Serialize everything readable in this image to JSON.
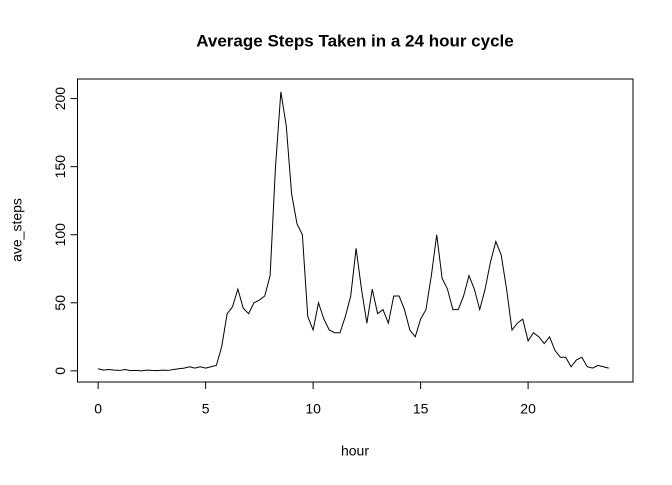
{
  "chart_data": {
    "type": "line",
    "title": "Average Steps Taken in a 24 hour cycle",
    "xlabel": "hour",
    "ylabel": "ave_steps",
    "x": [
      0,
      0.25,
      0.5,
      0.75,
      1,
      1.25,
      1.5,
      1.75,
      2,
      2.25,
      2.5,
      2.75,
      3,
      3.25,
      3.5,
      3.75,
      4,
      4.25,
      4.5,
      4.75,
      5,
      5.25,
      5.5,
      5.75,
      6,
      6.25,
      6.5,
      6.75,
      7,
      7.25,
      7.5,
      7.75,
      8,
      8.25,
      8.5,
      8.75,
      9,
      9.25,
      9.5,
      9.75,
      10,
      10.25,
      10.5,
      10.75,
      11,
      11.25,
      11.5,
      11.75,
      12,
      12.25,
      12.5,
      12.75,
      13,
      13.25,
      13.5,
      13.75,
      14,
      14.25,
      14.5,
      14.75,
      15,
      15.25,
      15.5,
      15.75,
      16,
      16.25,
      16.5,
      16.75,
      17,
      17.25,
      17.5,
      17.75,
      18,
      18.25,
      18.5,
      18.75,
      19,
      19.25,
      19.5,
      19.75,
      20,
      20.25,
      20.5,
      20.75,
      21,
      21.25,
      21.5,
      21.75,
      22,
      22.25,
      22.5,
      22.75,
      23,
      23.25,
      23.5,
      23.75
    ],
    "series": [
      {
        "name": "ave_steps",
        "color": "#000000",
        "values": [
          1.5,
          0.5,
          1,
          0.5,
          0.3,
          1,
          0.2,
          0.3,
          0,
          0.5,
          0.3,
          0.2,
          0.5,
          0.3,
          1,
          1.5,
          2,
          3,
          2,
          3,
          2,
          3,
          4,
          18,
          42,
          47,
          60,
          46,
          42,
          50,
          52,
          55,
          70,
          150,
          205,
          180,
          130,
          108,
          100,
          40,
          30,
          50,
          38,
          30,
          28,
          28,
          40,
          55,
          90,
          60,
          35,
          60,
          42,
          45,
          35,
          55,
          55,
          45,
          30,
          25,
          38,
          45,
          70,
          100,
          68,
          60,
          45,
          45,
          55,
          70,
          60,
          45,
          60,
          80,
          95,
          85,
          60,
          30,
          35,
          38,
          22,
          28,
          25,
          20,
          25,
          15,
          10,
          10,
          3,
          8,
          10,
          3,
          2,
          4,
          3,
          2
        ]
      }
    ],
    "xlim": [
      -0.96,
      24.88
    ],
    "ylim": [
      -8.2,
      214.4
    ],
    "xticks": [
      0,
      5,
      10,
      15,
      20
    ],
    "yticks": [
      0,
      50,
      100,
      150,
      200
    ]
  }
}
